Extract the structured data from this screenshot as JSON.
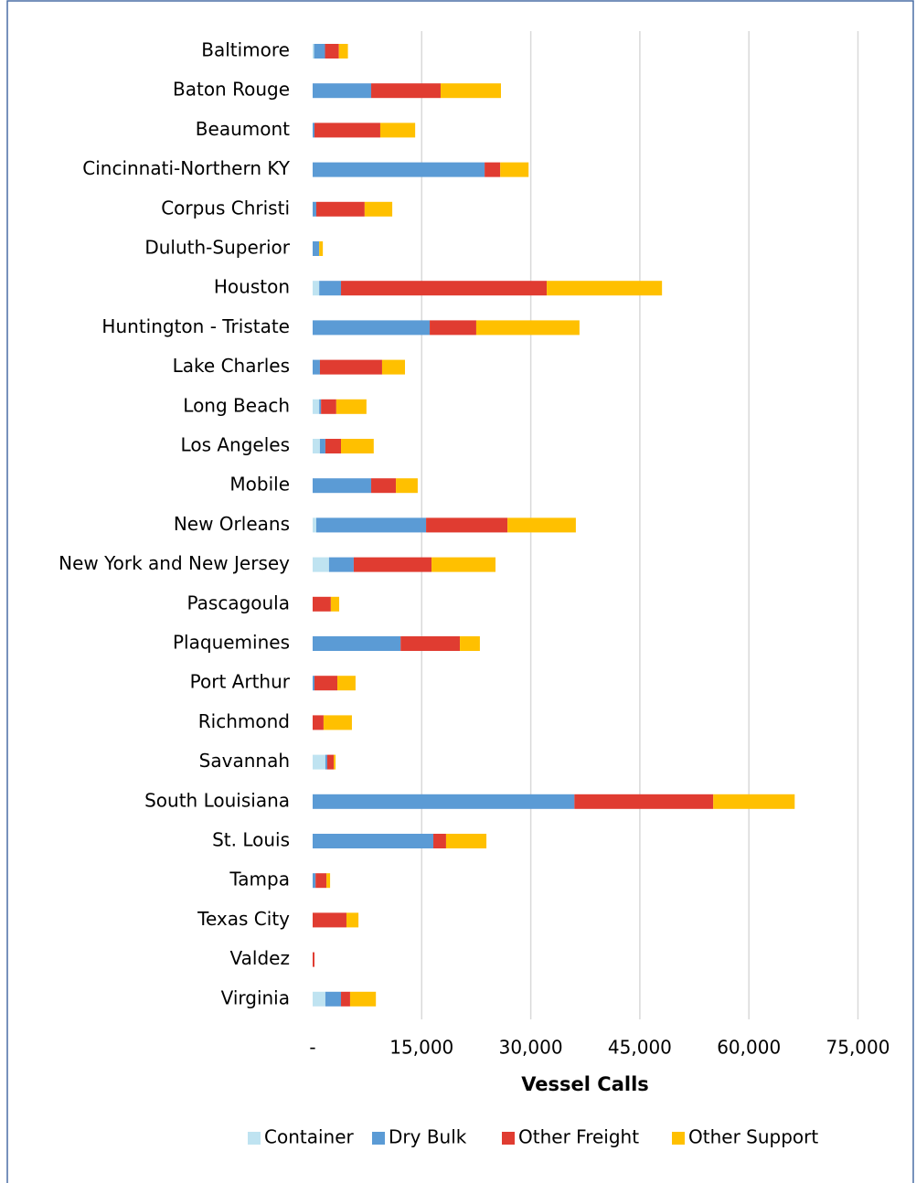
{
  "chart_data": {
    "type": "stacked-bar-horizontal",
    "x_label": "Vessel Calls",
    "categories": [
      "Baltimore",
      "Baton Rouge",
      "Beaumont",
      "Cincinnati-Northern KY",
      "Corpus Christi",
      "Duluth-Superior",
      "Houston",
      "Huntington - Tristate",
      "Lake Charles",
      "Long Beach",
      "Los Angeles",
      "Mobile",
      "New Orleans",
      "New York and New Jersey",
      "Pascagoula",
      "Plaquemines",
      "Port Arthur",
      "Richmond",
      "Savannah",
      "South Louisiana",
      "St. Louis",
      "Tampa",
      "Texas City",
      "Valdez",
      "Virginia"
    ],
    "series": [
      {
        "name": "Container",
        "color": "#bfe3f1",
        "values": [
          200,
          0,
          0,
          0,
          0,
          0,
          900,
          0,
          0,
          900,
          1000,
          0,
          500,
          2250,
          0,
          0,
          0,
          0,
          1750,
          0,
          0,
          0,
          0,
          0,
          1750
        ]
      },
      {
        "name": "Dry Bulk",
        "color": "#5b9bd5",
        "values": [
          1500,
          8050,
          250,
          23650,
          500,
          900,
          3000,
          16100,
          1000,
          250,
          750,
          8050,
          15100,
          3400,
          0,
          12100,
          250,
          0,
          250,
          36000,
          16600,
          400,
          0,
          0,
          2150
        ]
      },
      {
        "name": "Other Freight",
        "color": "#e03c31",
        "values": [
          1900,
          9550,
          9050,
          2150,
          6650,
          0,
          28300,
          6400,
          8550,
          2100,
          2150,
          3400,
          11200,
          10700,
          2500,
          8150,
          3150,
          1500,
          900,
          19100,
          1750,
          1500,
          4650,
          250,
          1250
        ]
      },
      {
        "name": "Other Support",
        "color": "#ffc000",
        "values": [
          1250,
          8300,
          4800,
          3900,
          3800,
          500,
          15850,
          14200,
          3150,
          4150,
          4500,
          3000,
          9400,
          8800,
          1150,
          2750,
          2500,
          3900,
          250,
          11200,
          5550,
          500,
          1650,
          0,
          3550
        ]
      }
    ],
    "xlim": [
      0,
      82500
    ],
    "xticks": [
      {
        "value": 0,
        "label": "-"
      },
      {
        "value": 15000,
        "label": "15,000"
      },
      {
        "value": 30000,
        "label": "30,000"
      },
      {
        "value": 45000,
        "label": "45,000"
      },
      {
        "value": 60000,
        "label": "60,000"
      },
      {
        "value": 75000,
        "label": "75,000"
      }
    ],
    "grid": true,
    "legend": "bottom"
  }
}
